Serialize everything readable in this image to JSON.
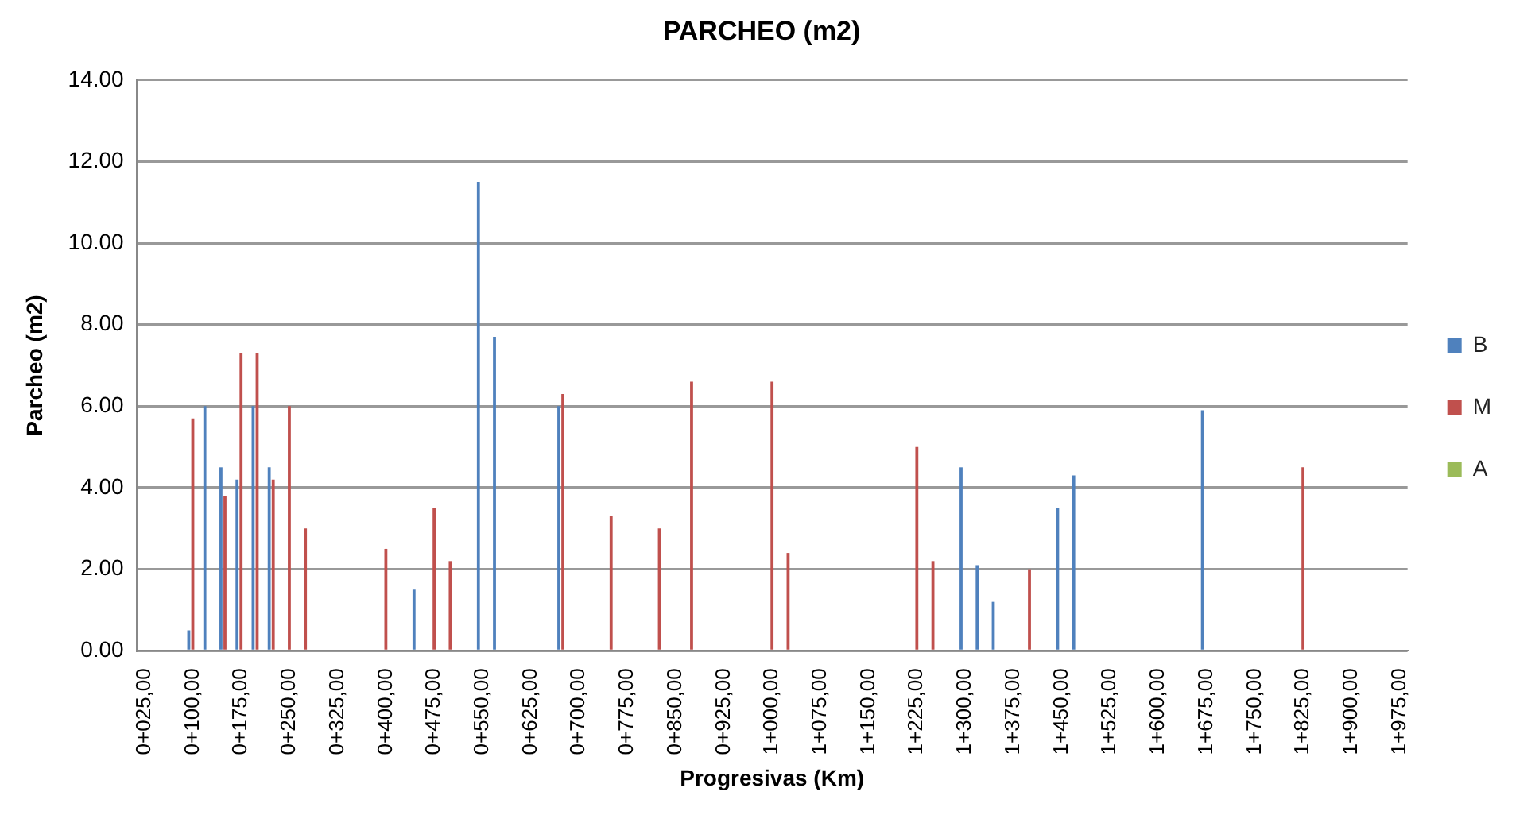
{
  "chart_data": {
    "type": "bar",
    "title": "PARCHEO (m2)",
    "xlabel": "Progresivas (Km)",
    "ylabel": "Parcheo (m2)",
    "categories": [
      "0+025,00",
      null,
      null,
      "0+100,00",
      null,
      null,
      "0+175,00",
      null,
      null,
      "0+250,00",
      null,
      null,
      "0+325,00",
      null,
      null,
      "0+400,00",
      null,
      null,
      "0+475,00",
      null,
      null,
      "0+550,00",
      null,
      null,
      "0+625,00",
      null,
      null,
      "0+700,00",
      null,
      null,
      "0+775,00",
      null,
      null,
      "0+850,00",
      null,
      null,
      "0+925,00",
      null,
      null,
      "1+000,00",
      null,
      null,
      "1+075,00",
      null,
      null,
      "1+150,00",
      null,
      null,
      "1+225,00",
      null,
      null,
      "1+300,00",
      null,
      null,
      "1+375,00",
      null,
      null,
      "1+450,00",
      null,
      null,
      "1+525,00",
      null,
      null,
      "1+600,00",
      null,
      null,
      "1+675,00",
      null,
      null,
      "1+750,00",
      null,
      null,
      "1+825,00",
      null,
      null,
      "1+900,00",
      null,
      null,
      "1+975,00"
    ],
    "series": [
      {
        "name": "B",
        "color": "#4f81bd",
        "values": [
          null,
          null,
          null,
          0.5,
          6.0,
          4.5,
          4.2,
          6.0,
          4.5,
          null,
          null,
          null,
          null,
          null,
          null,
          null,
          null,
          1.5,
          null,
          null,
          null,
          11.5,
          7.7,
          null,
          null,
          null,
          6.0,
          null,
          null,
          null,
          null,
          null,
          null,
          null,
          null,
          null,
          null,
          null,
          null,
          null,
          null,
          null,
          null,
          null,
          null,
          null,
          null,
          null,
          null,
          null,
          null,
          4.5,
          2.1,
          1.2,
          null,
          null,
          null,
          3.5,
          4.3,
          null,
          null,
          null,
          null,
          null,
          null,
          null,
          5.9,
          null,
          null,
          null,
          null,
          null,
          null,
          null,
          null,
          null,
          null,
          null,
          null
        ]
      },
      {
        "name": "M",
        "color": "#c0504d",
        "values": [
          null,
          null,
          null,
          5.7,
          null,
          3.8,
          7.3,
          7.3,
          4.2,
          6.0,
          3.0,
          null,
          null,
          null,
          null,
          2.5,
          null,
          null,
          3.5,
          2.2,
          null,
          null,
          null,
          null,
          null,
          null,
          6.3,
          null,
          null,
          3.3,
          null,
          null,
          3.0,
          null,
          6.6,
          null,
          null,
          null,
          null,
          6.6,
          2.4,
          null,
          null,
          null,
          null,
          null,
          null,
          null,
          5.0,
          2.2,
          null,
          null,
          null,
          null,
          null,
          2.0,
          null,
          null,
          null,
          null,
          null,
          null,
          null,
          null,
          null,
          null,
          null,
          null,
          null,
          null,
          null,
          null,
          4.5,
          null,
          null,
          null,
          null,
          null,
          null
        ]
      },
      {
        "name": "A",
        "color": "#9bbb59",
        "values": [
          null,
          null,
          null,
          null,
          null,
          null,
          null,
          null,
          null,
          null,
          null,
          null,
          null,
          null,
          null,
          null,
          null,
          null,
          null,
          null,
          null,
          null,
          null,
          null,
          null,
          null,
          null,
          null,
          null,
          null,
          null,
          null,
          null,
          null,
          null,
          null,
          null,
          null,
          null,
          null,
          null,
          null,
          null,
          null,
          null,
          null,
          null,
          null,
          null,
          null,
          null,
          null,
          null,
          null,
          null,
          null,
          null,
          null,
          null,
          null,
          null,
          null,
          null,
          null,
          null,
          null,
          null,
          null,
          null,
          null,
          null,
          null,
          null,
          null,
          null,
          null,
          null,
          null,
          null
        ]
      }
    ],
    "ylim": [
      0,
      14
    ],
    "yticks": [
      {
        "value": 0,
        "label": "0.00"
      },
      {
        "value": 2,
        "label": "2.00"
      },
      {
        "value": 4,
        "label": "4.00"
      },
      {
        "value": 6,
        "label": "6.00"
      },
      {
        "value": 8,
        "label": "8.00"
      },
      {
        "value": 10,
        "label": "10.00"
      },
      {
        "value": 12,
        "label": "12.00"
      },
      {
        "value": 14,
        "label": "14.00"
      }
    ],
    "grid": "y",
    "legend": "right"
  }
}
